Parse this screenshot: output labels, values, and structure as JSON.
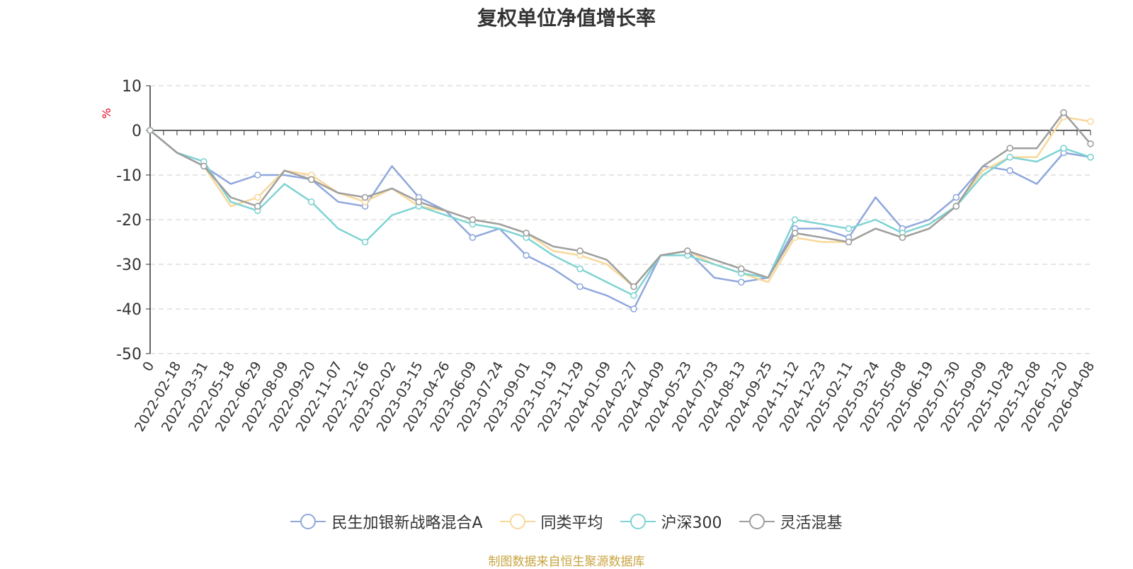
{
  "chart_data": {
    "type": "line",
    "title": "复权单位净值增长率",
    "ylabel": "%",
    "ylim": [
      -50,
      10
    ],
    "yticks": [
      10,
      0,
      -10,
      -20,
      -30,
      -40,
      -50
    ],
    "grid": true,
    "legend_position": "bottom",
    "x_labels": [
      "0",
      "2022-02-18",
      "2022-03-31",
      "2022-05-18",
      "2022-06-29",
      "2022-08-09",
      "2022-09-20",
      "2022-11-07",
      "2022-12-16",
      "2023-02-02",
      "2023-03-15",
      "2023-04-26",
      "2023-06-09",
      "2023-07-24",
      "2023-09-01",
      "2023-10-19",
      "2023-11-29",
      "2024-01-09",
      "2024-02-27",
      "2024-04-09",
      "2024-05-23",
      "2024-07-03",
      "2024-08-13",
      "2024-09-25",
      "2024-11-12",
      "2024-12-23",
      "2025-02-11",
      "2025-03-24",
      "2025-05-08",
      "2025-06-19",
      "2025-07-30",
      "2025-09-09",
      "2025-10-28",
      "2025-12-08",
      "2026-01-20",
      "2026-04-08"
    ],
    "series": [
      {
        "name": "民生加银新战略混合A",
        "color": "#8fa8dc",
        "values": [
          0,
          -5,
          -8,
          -12,
          -10,
          -10,
          -11,
          -16,
          -17,
          -8,
          -15,
          -18,
          -24,
          -22,
          -28,
          -31,
          -35,
          -37,
          -40,
          -28,
          -27,
          -33,
          -34,
          -33,
          -22,
          -22,
          -24,
          -15,
          -22,
          -20,
          -15,
          -8,
          -9,
          -12,
          -5,
          -6
        ]
      },
      {
        "name": "同类平均",
        "color": "#f8d89a",
        "values": [
          0,
          -5,
          -8,
          -17,
          -15,
          -9,
          -10,
          -14,
          -16,
          -13,
          -17,
          -18,
          -20,
          -21,
          -23,
          -27,
          -28,
          -30,
          -35,
          -28,
          -27,
          -30,
          -32,
          -34,
          -24,
          -25,
          -25,
          -22,
          -24,
          -22,
          -17,
          -9,
          -6,
          -6,
          3,
          2
        ]
      },
      {
        "name": "沪深300",
        "color": "#7fd3d3",
        "values": [
          0,
          -5,
          -7,
          -16,
          -18,
          -12,
          -16,
          -22,
          -25,
          -19,
          -17,
          -19,
          -21,
          -22,
          -24,
          -28,
          -31,
          -34,
          -37,
          -28,
          -28,
          -30,
          -32,
          -33,
          -20,
          -21,
          -22,
          -20,
          -23,
          -21,
          -17,
          -10,
          -6,
          -7,
          -4,
          -6
        ]
      },
      {
        "name": "灵活混基",
        "color": "#9e9e9e",
        "values": [
          0,
          -5,
          -8,
          -15,
          -17,
          -9,
          -11,
          -14,
          -15,
          -13,
          -16,
          -18,
          -20,
          -21,
          -23,
          -26,
          -27,
          -29,
          -35,
          -28,
          -27,
          -29,
          -31,
          -33,
          -23,
          -24,
          -25,
          -22,
          -24,
          -22,
          -17,
          -8,
          -4,
          -4,
          4,
          -3
        ]
      }
    ]
  },
  "source_text": "制图数据来自恒生聚源数据库"
}
